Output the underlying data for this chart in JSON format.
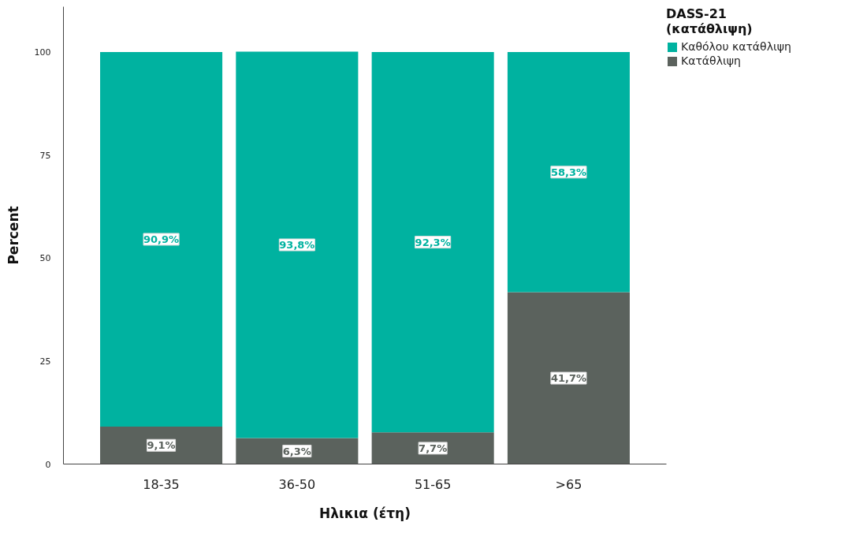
{
  "chart_data": {
    "type": "bar",
    "stacked": true,
    "xlabel": "Ηλικια (έτη)",
    "ylabel": "Percent",
    "legend_title": "DASS-21\n(κατάθλιψη)",
    "categories": [
      "18-35",
      "36-50",
      "51-65",
      ">65"
    ],
    "series": [
      {
        "name": "Κατάθλιψη",
        "color": "#5b625d",
        "values": [
          9.1,
          6.3,
          7.7,
          41.7
        ],
        "value_labels": [
          "9,1%",
          "6,3%",
          "7,7%",
          "41,7%"
        ]
      },
      {
        "name": "Καθόλου κατάθλιψη",
        "color": "#00b2a0",
        "values": [
          90.9,
          93.8,
          92.3,
          58.3
        ],
        "value_labels": [
          "90,9%",
          "93,8%",
          "92,3%",
          "58,3%"
        ]
      }
    ],
    "ylim": [
      0,
      111
    ],
    "yticks": [
      0,
      25,
      50,
      75,
      100
    ],
    "grid": false,
    "legend": "top right"
  }
}
